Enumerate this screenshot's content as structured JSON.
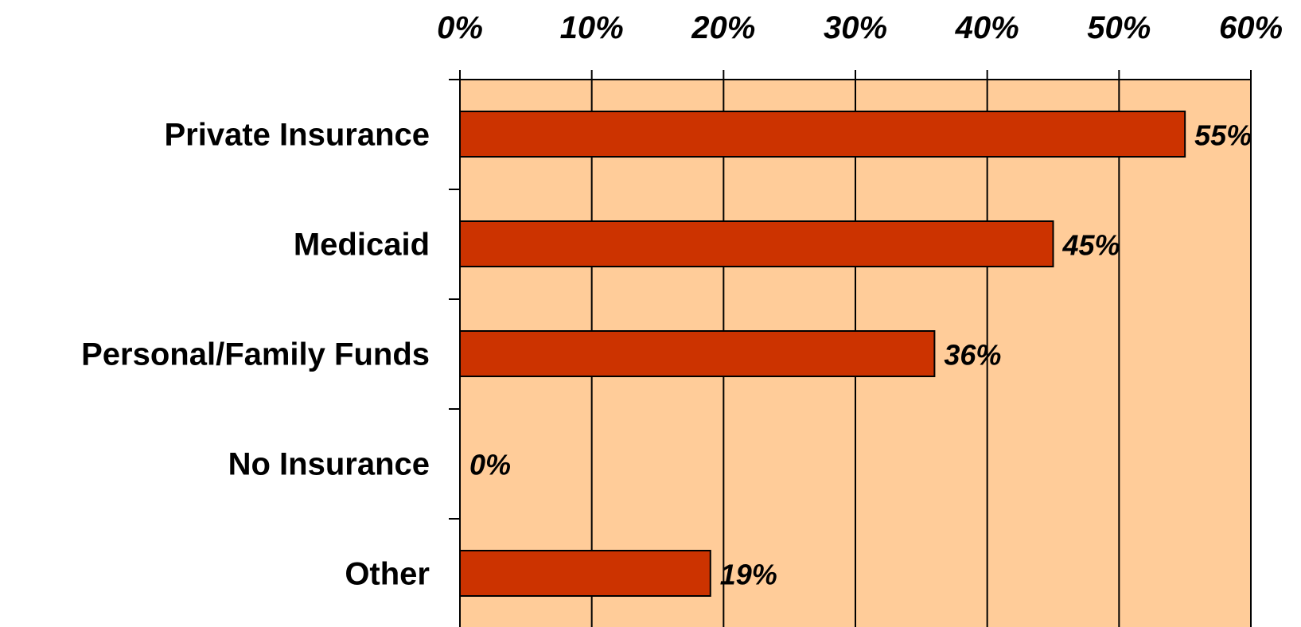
{
  "chart_data": {
    "type": "bar",
    "orientation": "horizontal",
    "categories": [
      "Private Insurance",
      "Medicaid",
      "Personal/Family Funds",
      "No Insurance",
      "Other"
    ],
    "values": [
      55,
      45,
      36,
      0,
      19
    ],
    "data_labels": [
      "55%",
      "45%",
      "36%",
      "0%",
      "19%"
    ],
    "x_ticks": [
      "0%",
      "10%",
      "20%",
      "30%",
      "40%",
      "50%",
      "60%"
    ],
    "xlim": [
      0,
      60
    ],
    "x_axis_position": "top",
    "grid": true,
    "legend": "none",
    "colors": {
      "bar": "#CC3300",
      "plot_background": "#FFCC99",
      "gridline": "#000000"
    }
  }
}
